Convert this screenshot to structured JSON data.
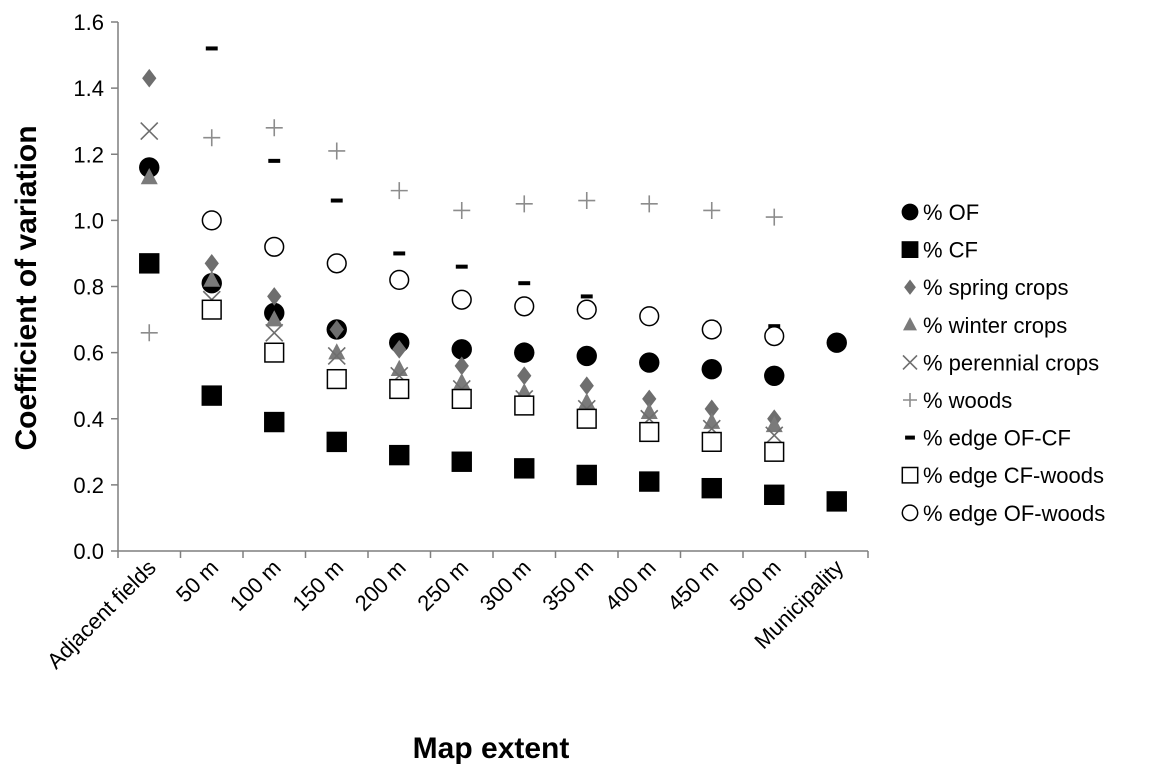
{
  "chart_data": {
    "type": "scatter",
    "xlabel": "Map extent",
    "ylabel": "Coefficient of variation",
    "categories": [
      "Adjacent fields",
      "50 m",
      "100 m",
      "150 m",
      "200 m",
      "250 m",
      "300 m",
      "350 m",
      "400 m",
      "450 m",
      "500 m",
      "Municipality"
    ],
    "ylim": [
      0,
      1.6
    ],
    "yticks": [
      "0.0",
      "0.2",
      "0.4",
      "0.6",
      "0.8",
      "1.0",
      "1.2",
      "1.4",
      "1.6"
    ],
    "grid": false,
    "legend_position": "right",
    "series": [
      {
        "name": "% OF",
        "marker": "filled-circle",
        "color": "#000000",
        "values": [
          1.16,
          0.81,
          0.72,
          0.67,
          0.63,
          0.61,
          0.6,
          0.59,
          0.57,
          0.55,
          0.53,
          0.63
        ]
      },
      {
        "name": "% CF",
        "marker": "filled-square",
        "color": "#000000",
        "values": [
          0.87,
          0.47,
          0.39,
          0.33,
          0.29,
          0.27,
          0.25,
          0.23,
          0.21,
          0.19,
          0.17,
          0.15
        ]
      },
      {
        "name": "% spring crops",
        "marker": "diamond",
        "color": "#6e6e6e",
        "values": [
          1.43,
          0.87,
          0.77,
          0.67,
          0.61,
          0.56,
          0.53,
          0.5,
          0.46,
          0.43,
          0.4,
          null
        ]
      },
      {
        "name": "% winter crops",
        "marker": "triangle",
        "color": "#7a7a7a",
        "values": [
          1.13,
          0.82,
          0.7,
          0.6,
          0.55,
          0.51,
          0.48,
          0.45,
          0.42,
          0.39,
          0.38,
          null
        ]
      },
      {
        "name": "% perennial crops",
        "marker": "x",
        "color": "#6e6e6e",
        "values": [
          1.27,
          0.76,
          0.66,
          0.59,
          0.53,
          0.49,
          0.46,
          0.43,
          0.4,
          0.37,
          0.35,
          null
        ]
      },
      {
        "name": "% woods",
        "marker": "plus",
        "color": "#8c8c8c",
        "values": [
          0.66,
          1.25,
          1.28,
          1.21,
          1.09,
          1.03,
          1.05,
          1.06,
          1.05,
          1.03,
          1.01,
          null
        ]
      },
      {
        "name": "% edge OF-CF",
        "marker": "dash",
        "color": "#000000",
        "values": [
          null,
          1.52,
          1.18,
          1.06,
          0.9,
          0.86,
          0.81,
          0.77,
          0.72,
          0.69,
          0.68,
          null
        ]
      },
      {
        "name": "% edge CF-woods",
        "marker": "open-square",
        "color": "#000000",
        "values": [
          null,
          0.73,
          0.6,
          0.52,
          0.49,
          0.46,
          0.44,
          0.4,
          0.36,
          0.33,
          0.3,
          null
        ]
      },
      {
        "name": "% edge OF-woods",
        "marker": "open-circle",
        "color": "#000000",
        "values": [
          null,
          1.0,
          0.92,
          0.87,
          0.82,
          0.76,
          0.74,
          0.73,
          0.71,
          0.67,
          0.65,
          null
        ]
      }
    ]
  }
}
